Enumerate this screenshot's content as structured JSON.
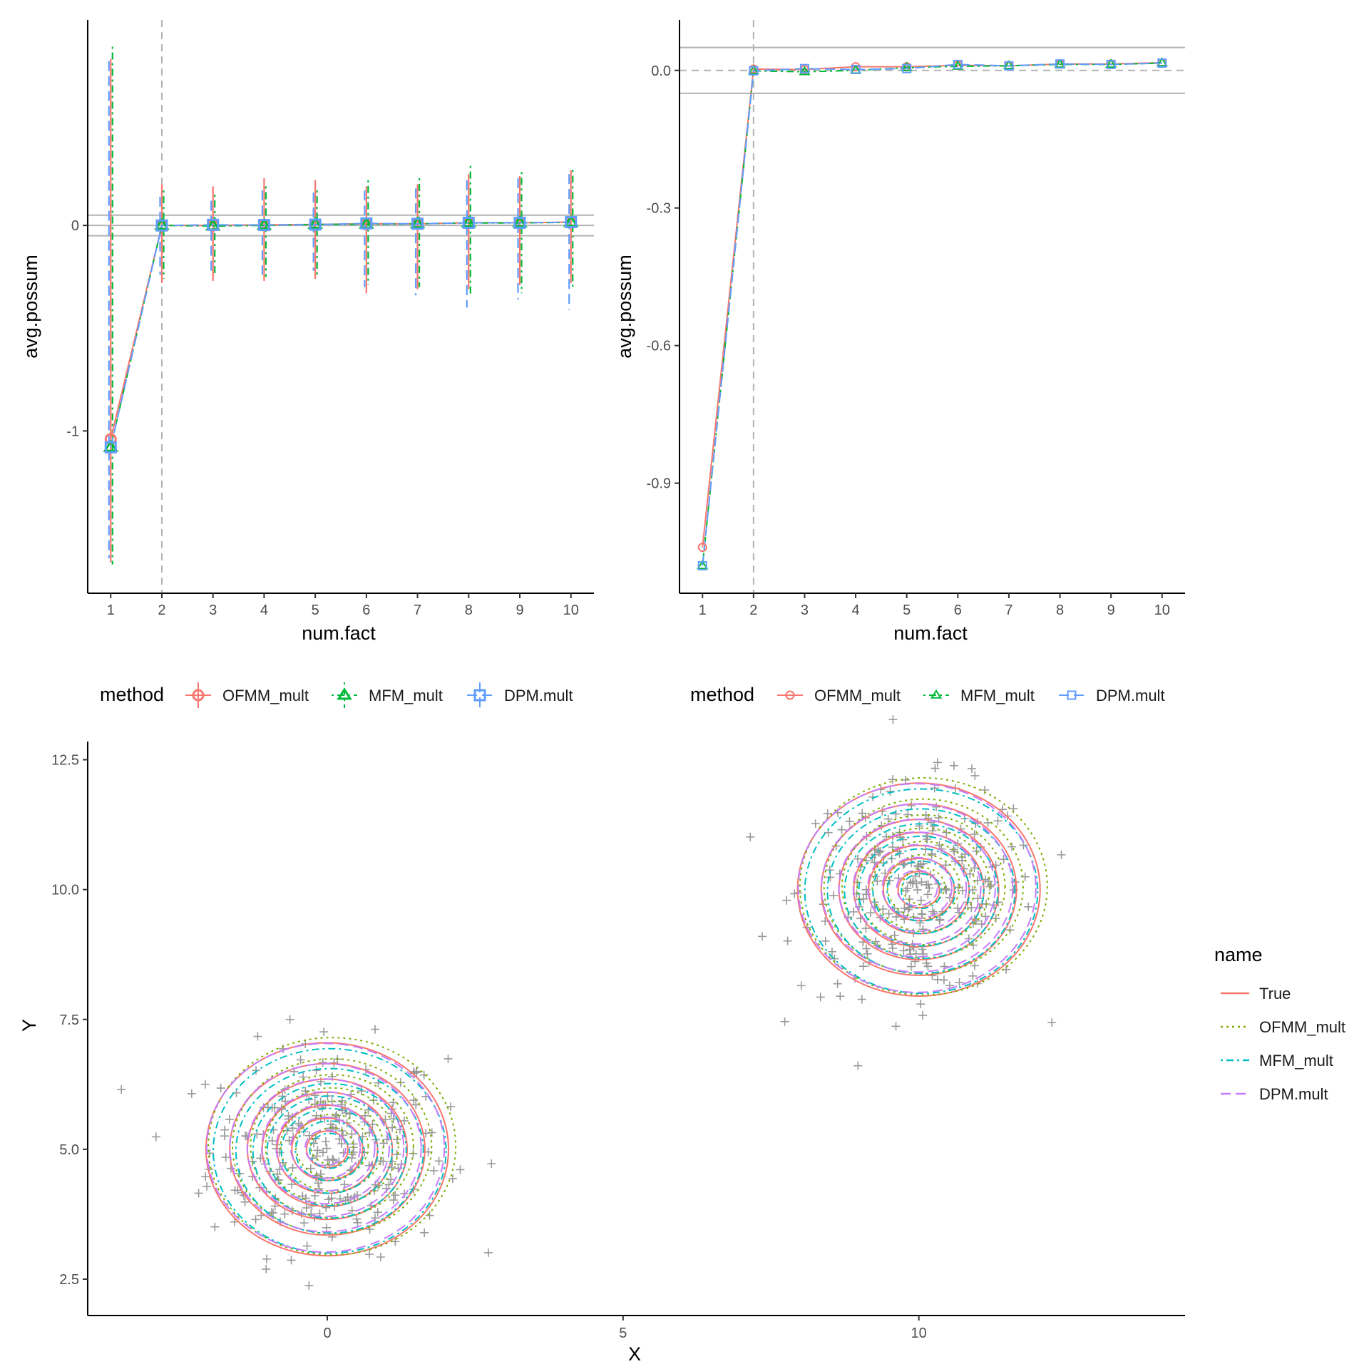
{
  "colors": {
    "OFMM_mult": "#F8766D",
    "MFM_mult": "#00BA38",
    "DPM.mult": "#619CFF",
    "True": "#F8766D",
    "OFMM_mult_contour": "#7CAE00",
    "MFM_mult_contour": "#00BFC4",
    "DPM.mult_contour": "#C77CFF",
    "reference": "#b3b3b3",
    "points": "#999999"
  },
  "chart_data": [
    {
      "type": "line",
      "id": "panel-left",
      "xlabel": "num.fact",
      "ylabel": "avg.possum",
      "x": [
        1,
        2,
        3,
        4,
        5,
        6,
        7,
        8,
        9,
        10
      ],
      "xlim": [
        0.55,
        10.45
      ],
      "ylim": [
        -1.79,
        1.0
      ],
      "yticks": [
        -1,
        0
      ],
      "yticklabels": [
        "-1",
        "0"
      ],
      "hlines": [
        0.05,
        0.0,
        -0.05
      ],
      "vline": 2,
      "legend": {
        "title": "method",
        "position": "bottom",
        "entries": [
          "OFMM_mult",
          "MFM_mult",
          "DPM.mult"
        ]
      },
      "series": [
        {
          "name": "OFMM_mult",
          "marker": "circle",
          "dash": "solid",
          "values": [
            -1.04,
            0.0,
            0.0,
            0.003,
            0.005,
            0.008,
            0.008,
            0.013,
            0.013,
            0.016
          ],
          "upper": [
            0.81,
            0.2,
            0.19,
            0.23,
            0.22,
            0.19,
            0.2,
            0.25,
            0.24,
            0.27
          ],
          "lower": [
            -1.64,
            -0.28,
            -0.27,
            -0.27,
            -0.26,
            -0.33,
            -0.31,
            -0.31,
            -0.29,
            -0.28
          ]
        },
        {
          "name": "MFM_mult",
          "marker": "triangle",
          "dash": "dotdash",
          "values": [
            -1.08,
            0.0,
            -0.003,
            0.0,
            0.005,
            0.006,
            0.008,
            0.012,
            0.012,
            0.015
          ],
          "upper": [
            0.87,
            0.17,
            0.15,
            0.19,
            0.17,
            0.22,
            0.23,
            0.29,
            0.26,
            0.27
          ],
          "lower": [
            -1.65,
            -0.26,
            -0.25,
            -0.25,
            -0.25,
            -0.29,
            -0.3,
            -0.34,
            -0.33,
            -0.31
          ]
        },
        {
          "name": "DPM.mult",
          "marker": "square",
          "dash": "longdash",
          "values": [
            -1.08,
            0.0,
            0.003,
            0.002,
            0.004,
            0.01,
            0.008,
            0.013,
            0.013,
            0.016
          ],
          "upper": [
            0.8,
            0.14,
            0.12,
            0.17,
            0.16,
            0.17,
            0.18,
            0.22,
            0.23,
            0.25
          ],
          "lower": [
            -1.62,
            -0.24,
            -0.23,
            -0.24,
            -0.22,
            -0.3,
            -0.34,
            -0.4,
            -0.36,
            -0.41
          ]
        }
      ]
    },
    {
      "type": "line",
      "id": "panel-right",
      "xlabel": "num.fact",
      "ylabel": "avg.possum",
      "x": [
        1,
        2,
        3,
        4,
        5,
        6,
        7,
        8,
        9,
        10
      ],
      "xlim": [
        0.55,
        10.45
      ],
      "ylim": [
        -1.14,
        0.11
      ],
      "yticks": [
        -0.9,
        -0.6,
        -0.3,
        0.0
      ],
      "yticklabels": [
        "-0.9",
        "-0.6",
        "-0.3",
        "0.0"
      ],
      "hlines_solid": [
        0.05,
        -0.05
      ],
      "hline_dashed": 0.0,
      "vline": 2,
      "legend": {
        "title": "method",
        "position": "bottom",
        "entries": [
          "OFMM_mult",
          "MFM_mult",
          "DPM.mult"
        ]
      },
      "series": [
        {
          "name": "OFMM_mult",
          "marker": "circle",
          "dash": "solid",
          "values": [
            -1.04,
            0.003,
            0.002,
            0.008,
            0.008,
            0.011,
            0.01,
            0.014,
            0.014,
            0.017
          ]
        },
        {
          "name": "MFM_mult",
          "marker": "triangle",
          "dash": "dotdash",
          "values": [
            -1.08,
            -0.001,
            -0.003,
            0.0,
            0.006,
            0.009,
            0.01,
            0.013,
            0.013,
            0.016
          ]
        },
        {
          "name": "DPM.mult",
          "marker": "square",
          "dash": "longdash",
          "values": [
            -1.08,
            -0.001,
            0.004,
            0.002,
            0.004,
            0.013,
            0.01,
            0.014,
            0.013,
            0.016
          ]
        }
      ]
    },
    {
      "type": "scatter",
      "id": "panel-bottom",
      "xlabel": "X",
      "ylabel": "Y",
      "xlim": [
        -4.05,
        14.5
      ],
      "ylim": [
        1.8,
        12.85
      ],
      "xticks": [
        0,
        5,
        10
      ],
      "xticklabels": [
        "0",
        "5",
        "10"
      ],
      "yticks": [
        2.5,
        5.0,
        7.5,
        10.0,
        12.5
      ],
      "yticklabels": [
        "2.5",
        "5.0",
        "7.5",
        "10.0",
        "12.5"
      ],
      "clusters": [
        {
          "center": [
            0,
            5
          ],
          "radii": [
            2.05,
            1.65,
            1.35,
            1.1,
            0.85,
            0.6,
            0.35
          ]
        },
        {
          "center": [
            10,
            10
          ],
          "radii": [
            2.05,
            1.65,
            1.35,
            1.1,
            0.85,
            0.6,
            0.35
          ]
        }
      ],
      "contours": [
        {
          "name": "True",
          "dash": "solid",
          "dx": 0.0,
          "dy": 0.0,
          "scale": 1.0
        },
        {
          "name": "OFMM_mult",
          "dash": "dotted",
          "dx": 0.08,
          "dy": 0.06,
          "scale": 1.02
        },
        {
          "name": "MFM_mult",
          "dash": "dotdash",
          "dx": 0.04,
          "dy": -0.03,
          "scale": 0.96
        },
        {
          "name": "DPM.mult",
          "dash": "longdash",
          "dx": -0.03,
          "dy": 0.03,
          "scale": 0.98
        }
      ],
      "legend": {
        "title": "name",
        "position": "right",
        "entries": [
          "True",
          "OFMM_mult",
          "MFM_mult",
          "DPM.mult"
        ]
      },
      "points_per_cluster": 260
    }
  ]
}
